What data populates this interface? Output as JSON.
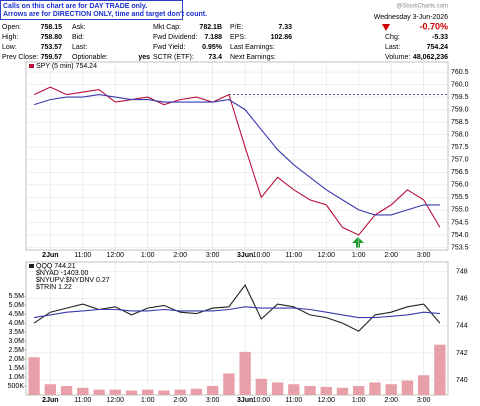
{
  "notes": [
    "Calls on this chart are for DAY TRADE only.",
    "Arrows are for DIRECTION ONLY, time and target don't count."
  ],
  "watermark": "@StockCharts.com",
  "quote": [
    [
      {
        "label": "Open:",
        "value": "758.15"
      },
      {
        "label": "Ask:"
      },
      {
        "label": "Mkt Cap:",
        "value": "782.1B"
      },
      {
        "label": "P/E:",
        "value": "7.33"
      }
    ],
    [
      {
        "label": "High:",
        "value": "758.80"
      },
      {
        "label": "Bid:"
      },
      {
        "label": "Fwd Dividend:",
        "value": "7.188"
      },
      {
        "label": "EPS:",
        "value": "102.86"
      }
    ],
    [
      {
        "label": "Low:",
        "value": "753.57"
      },
      {
        "label": "Last:"
      },
      {
        "label": "Fwd Yield:",
        "value": "0.95%"
      },
      {
        "label": "Last Earnings:"
      }
    ],
    [
      {
        "label": "Prev Close:",
        "value": "759.57"
      },
      {
        "label": "Optionable:",
        "value": "yes"
      },
      {
        "label": "SCTR (ETF):",
        "value": "73.4"
      },
      {
        "label": "Next Earnings:"
      }
    ]
  ],
  "summary": {
    "date": "Wednesday 3-Jun-2026",
    "change_pct": "-0.70%",
    "rows": [
      {
        "label": "Chg:",
        "value": "-5.33"
      },
      {
        "label": "Last:",
        "value": "754.24"
      },
      {
        "label": "Volume:",
        "value": "48,062,236"
      }
    ]
  },
  "chart_data": [
    {
      "type": "line",
      "categories": [
        null,
        "2Jun",
        null,
        "11:00",
        null,
        "12:00",
        null,
        "1:00",
        null,
        "2:00",
        null,
        "3:00",
        null,
        "3Jun",
        "10:00",
        null,
        "11:00",
        null,
        "12:00",
        null,
        "1:00",
        null,
        "2:00",
        null,
        "3:00",
        null
      ],
      "series": [
        {
          "name": "SPY (5 min) 754.24",
          "color": "#b8123a",
          "values": [
            759.6,
            759.9,
            759.6,
            759.7,
            759.8,
            759.3,
            759.4,
            759.5,
            759.2,
            759.4,
            759.5,
            759.3,
            759.6,
            757.5,
            755.5,
            756.3,
            755.8,
            755.4,
            755.2,
            754.3,
            754.0,
            754.8,
            755.2,
            755.8,
            755.4,
            754.3
          ]
        },
        {
          "color": "#3a3ab0",
          "values": [
            759.2,
            759.4,
            759.5,
            759.5,
            759.6,
            759.5,
            759.4,
            759.4,
            759.3,
            759.3,
            759.3,
            759.3,
            759.4,
            759.0,
            758.2,
            757.4,
            756.8,
            756.3,
            755.8,
            755.4,
            755.0,
            754.8,
            754.8,
            755.0,
            755.2,
            755.2
          ]
        }
      ],
      "ref_line": 759.6,
      "ref_color": "#3a3ab0",
      "ylim": [
        753.4,
        760.9
      ],
      "yticks": [
        753.5,
        {
          "value": 754,
          "label": "754.0"
        },
        754.5,
        {
          "value": 755,
          "label": "755.0"
        },
        755.5,
        {
          "value": 756,
          "label": "756.0"
        },
        756.5,
        {
          "value": 757,
          "label": "757.0"
        },
        757.5,
        {
          "value": 758,
          "label": "758.0"
        },
        758.5,
        {
          "value": 759,
          "label": "759.0"
        },
        759.5,
        {
          "value": 760,
          "label": "760.0"
        },
        760.5
      ],
      "grid": true
    },
    {
      "type": "line",
      "categories": [
        null,
        "2Jun",
        null,
        "11:00",
        null,
        "12:00",
        null,
        "1:00",
        null,
        "2:00",
        null,
        "3:00",
        null,
        "3Jun",
        "10:00",
        null,
        "11:00",
        null,
        "12:00",
        null,
        "1:00",
        null,
        "2:00",
        null,
        "3:00",
        null
      ],
      "series": [
        {
          "name": "QQQ 744.21",
          "color": "#222222",
          "axis": "y2",
          "values": [
            744.2,
            745.0,
            745.3,
            745.6,
            745.2,
            745.4,
            744.8,
            745.3,
            745.5,
            745.0,
            744.9,
            745.3,
            745.4,
            747.0,
            744.5,
            745.6,
            745.4,
            744.8,
            744.6,
            744.2,
            743.6,
            744.8,
            745.0,
            745.4,
            745.6,
            744.2
          ]
        },
        {
          "color": "#3a3ab0",
          "axis": "y2",
          "values": [
            744.6,
            744.8,
            745.0,
            745.1,
            745.2,
            745.2,
            745.1,
            745.1,
            745.2,
            745.1,
            745.1,
            745.1,
            745.2,
            745.4,
            745.3,
            745.3,
            745.3,
            745.2,
            745.0,
            744.8,
            744.6,
            744.6,
            744.7,
            744.8,
            745.0,
            744.9
          ]
        },
        {
          "type": "bar",
          "color": "#e8a0a8",
          "values": [
            2100000,
            600000,
            500000,
            400000,
            300000,
            300000,
            250000,
            300000,
            250000,
            300000,
            350000,
            500000,
            1200000,
            2400000,
            900000,
            700000,
            600000,
            500000,
            450000,
            400000,
            500000,
            700000,
            600000,
            800000,
            1100000,
            2800000
          ]
        }
      ],
      "annotations": [
        "$NYAD -1403.00",
        "$NYUPV:$NYDNV 0.27",
        "$TRIN 1.22"
      ],
      "ylim": [
        0,
        7400000
      ],
      "yticks": [
        {
          "value": 500000,
          "label": "500K"
        },
        {
          "value": 1000000,
          "label": "1.0M"
        },
        {
          "value": 1500000,
          "label": "1.5M"
        },
        {
          "value": 2000000,
          "label": "2.0M"
        },
        {
          "value": 2500000,
          "label": "2.5M"
        },
        {
          "value": 3000000,
          "label": "3.0M"
        },
        {
          "value": 3500000,
          "label": "3.5M"
        },
        {
          "value": 4000000,
          "label": "4.0M"
        },
        {
          "value": 4500000,
          "label": "4.5M"
        },
        {
          "value": 5000000,
          "label": "5.0M"
        },
        {
          "value": 5500000,
          "label": "5.5M"
        }
      ],
      "y2lim": [
        738.9,
        748.7
      ],
      "y2ticks": [
        740,
        742,
        744,
        746,
        748
      ],
      "grid": true
    }
  ]
}
